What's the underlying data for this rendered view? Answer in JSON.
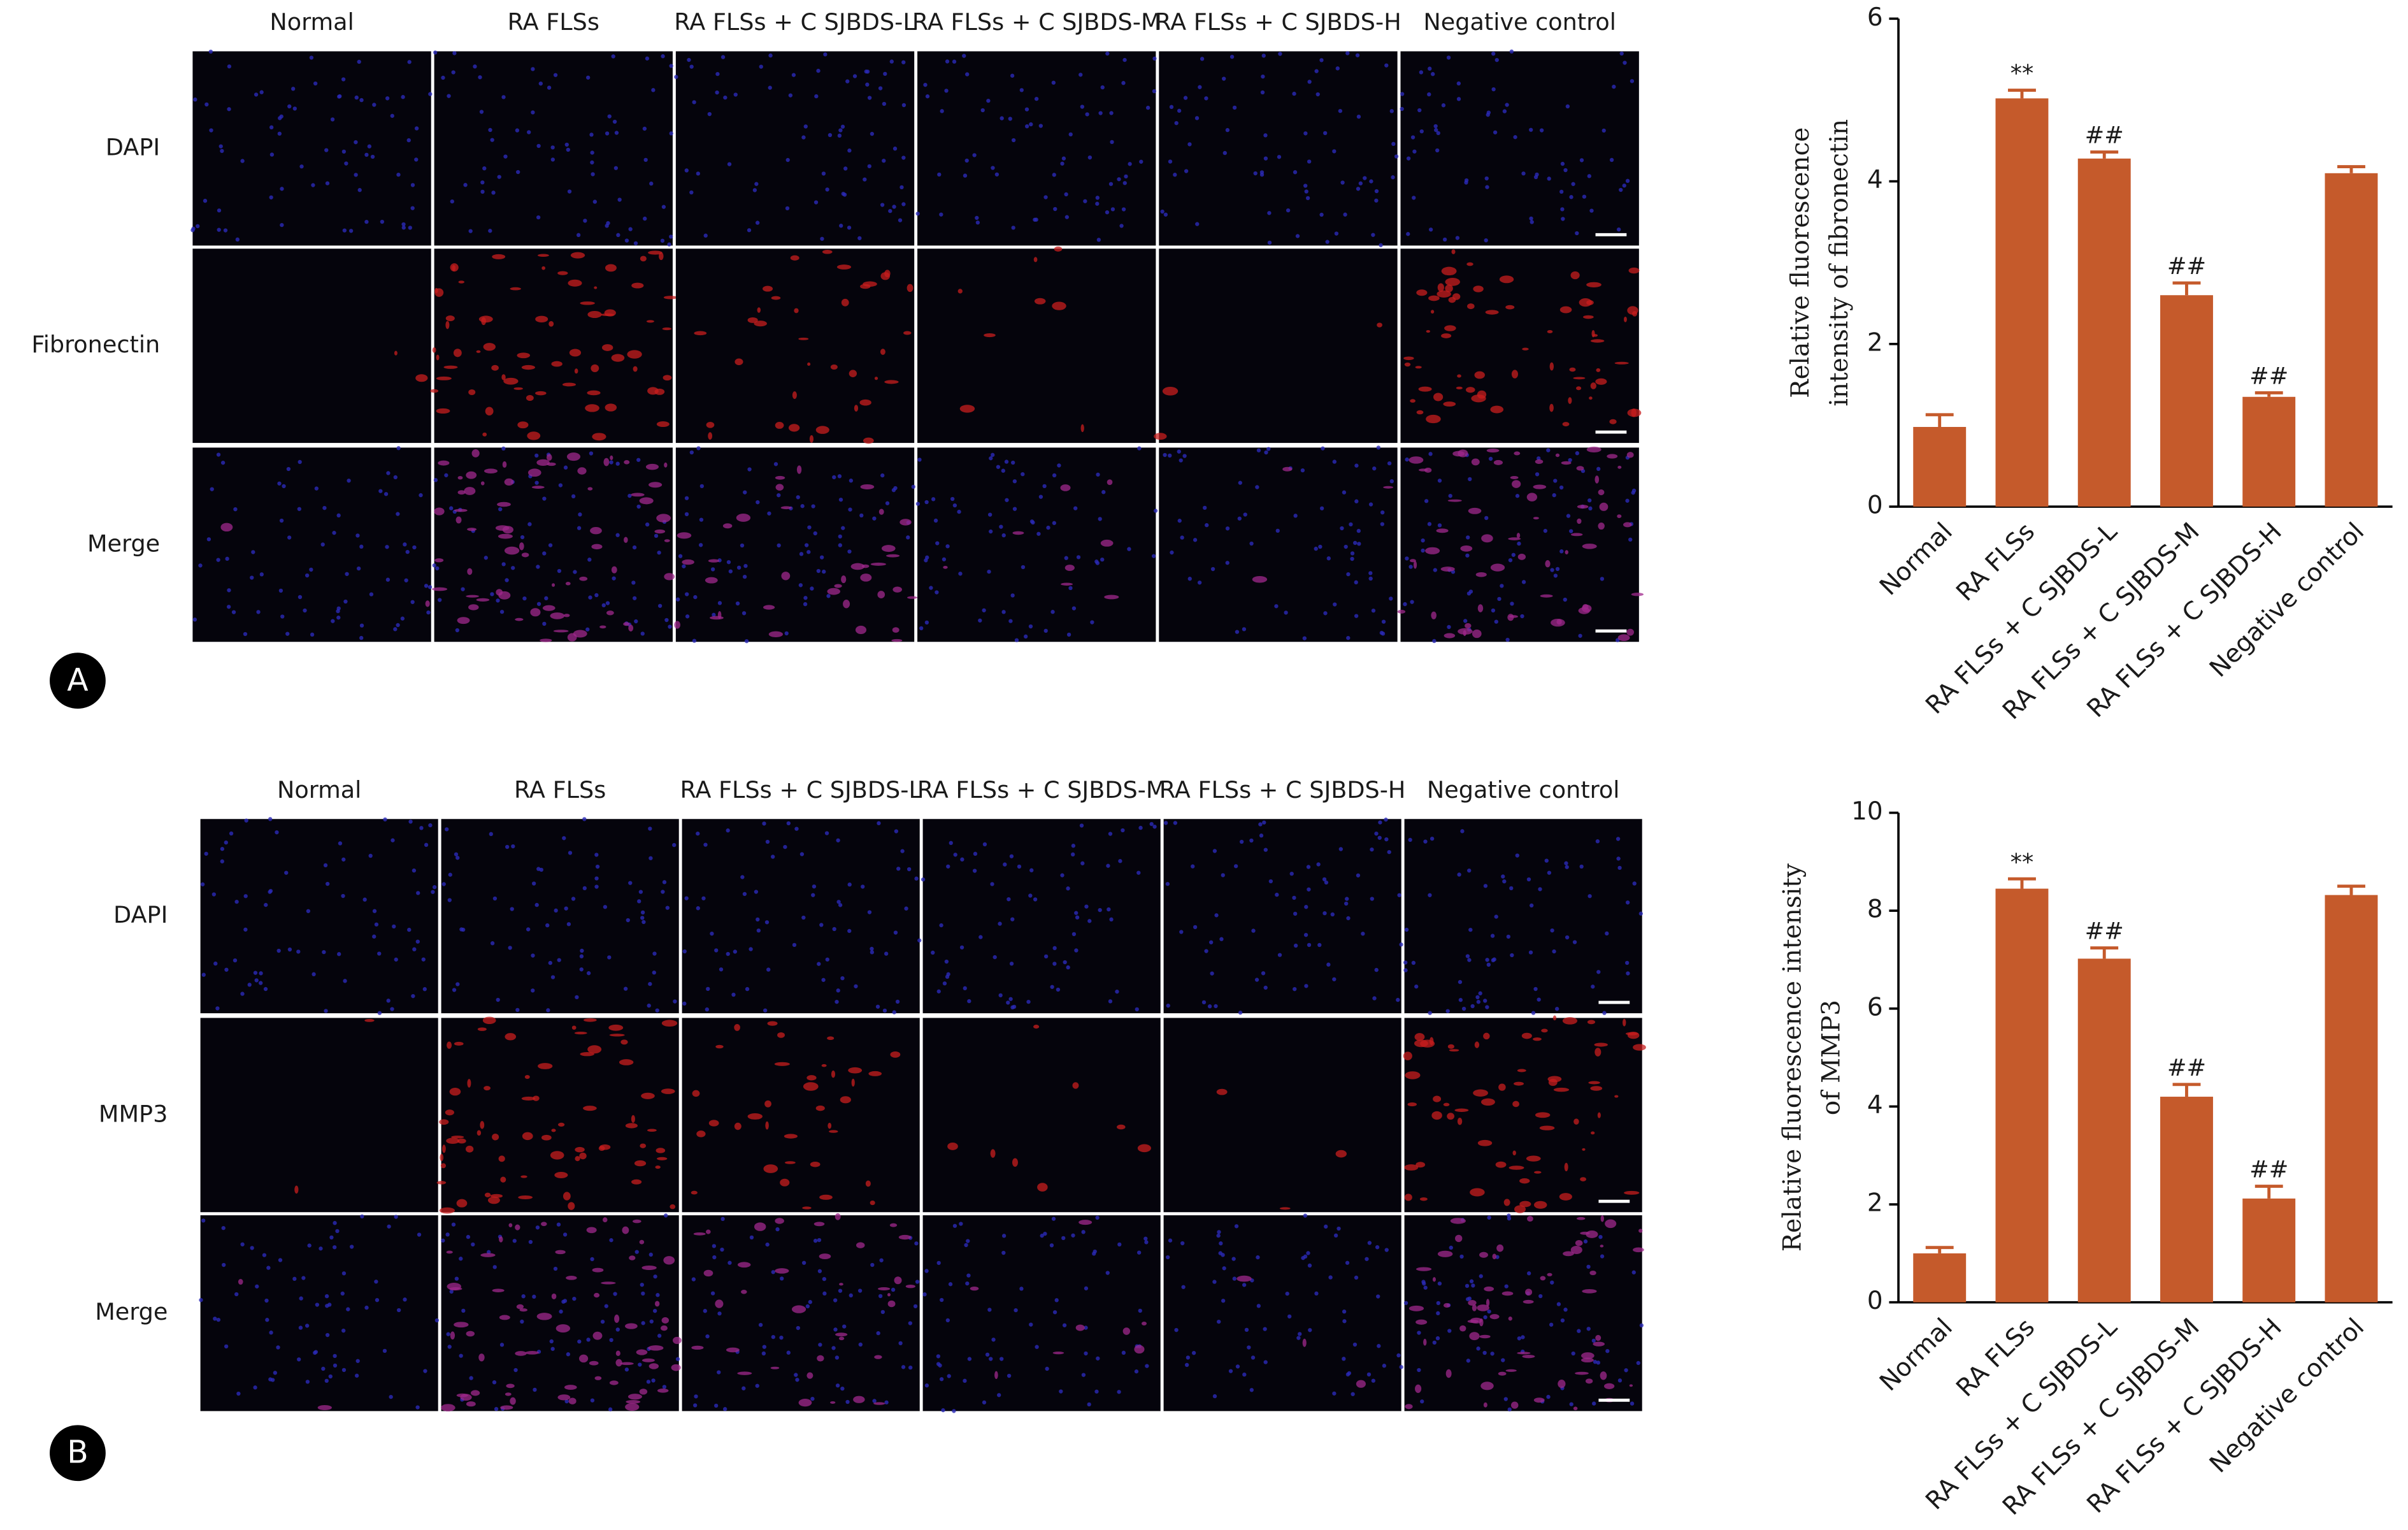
{
  "panels": [
    {
      "letter": "A",
      "columns": [
        "Normal",
        "RA FLSs",
        "RA FLSs + C SJBDS-L",
        "RA FLSs + C SJBDS-M",
        "RA FLSs + C SJBDS-H",
        "Negative control"
      ],
      "rows": [
        "DAPI",
        "Fibronectin",
        "Merge"
      ]
    },
    {
      "letter": "B",
      "columns": [
        "Normal",
        "RA FLSs",
        "RA FLSs + C SJBDS-L",
        "RA FLSs + C SJBDS-M",
        "RA FLSs + C SJBDS-H",
        "Negative control"
      ],
      "rows": [
        "DAPI",
        "MMP3",
        "Merge"
      ]
    }
  ],
  "chart_data": [
    {
      "type": "bar",
      "y_label": [
        "Relative fluorescence",
        "intensity of fibronectin"
      ],
      "categories": [
        "Normal",
        "RA FLSs",
        "RA FLSs + C SJBDS-L",
        "RA FLSs + C SJBDS-M",
        "RA FLSs + C SJBDS-H",
        "Negative control"
      ],
      "values": [
        0.98,
        5.02,
        4.28,
        2.6,
        1.35,
        4.1
      ],
      "errors": [
        0.15,
        0.1,
        0.08,
        0.15,
        0.05,
        0.08
      ],
      "annotations": [
        null,
        "**",
        "##",
        "##",
        "##",
        null
      ],
      "color": "#c55a2b",
      "ylim": [
        0,
        6
      ],
      "yticks": [
        0,
        2,
        4,
        6
      ]
    },
    {
      "type": "bar",
      "y_label": [
        "Relative fluorescence intensity",
        "of MMP3"
      ],
      "categories": [
        "Normal",
        "RA FLSs",
        "RA FLSs + C SJBDS-L",
        "RA FLSs + C SJBDS-M",
        "RA FLSs + C SJBDS-H",
        "Negative control"
      ],
      "values": [
        1.0,
        8.45,
        7.02,
        4.2,
        2.12,
        8.32
      ],
      "errors": [
        0.12,
        0.2,
        0.22,
        0.25,
        0.25,
        0.18
      ],
      "annotations": [
        null,
        "**",
        "##",
        "##",
        "##",
        null
      ],
      "color": "#c55a2b",
      "ylim": [
        0,
        10
      ],
      "yticks": [
        0,
        2,
        4,
        6,
        8,
        10
      ]
    }
  ]
}
